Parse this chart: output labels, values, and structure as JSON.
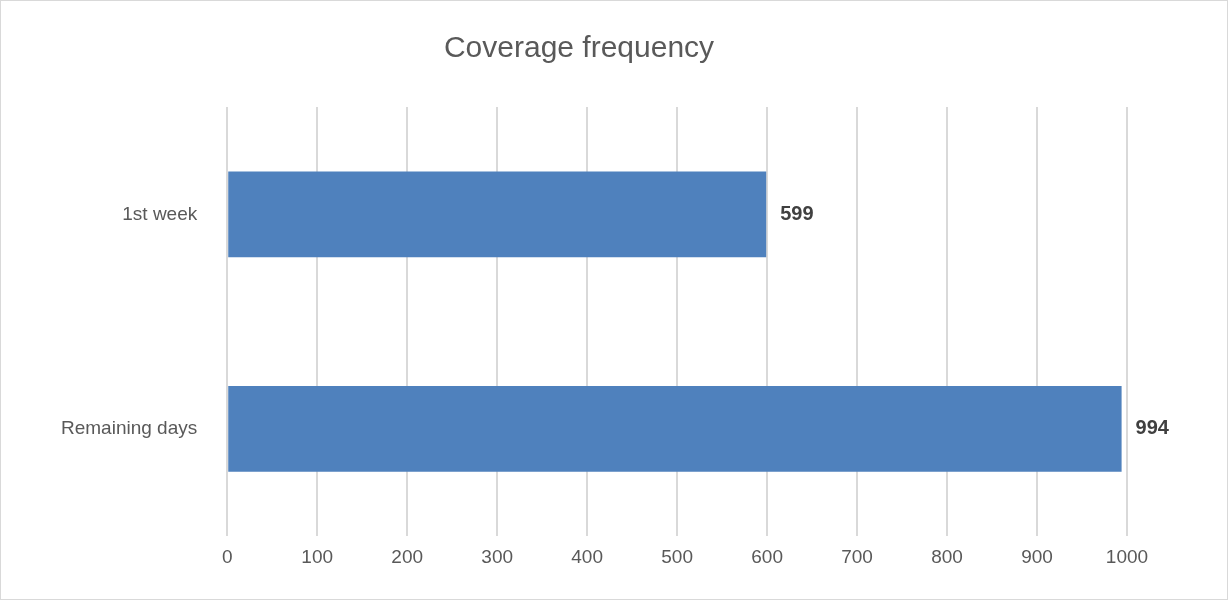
{
  "chart_data": {
    "type": "bar",
    "title": "Coverage frequency",
    "orientation": "horizontal",
    "categories": [
      "1st week",
      "Remaining days"
    ],
    "values": [
      599,
      994
    ],
    "color": "#4f81bd",
    "xlim": [
      0,
      1000
    ],
    "xticks": [
      0,
      100,
      200,
      300,
      400,
      500,
      600,
      700,
      800,
      900,
      1000
    ],
    "grid": "x",
    "legend": false,
    "data_labels": true
  }
}
